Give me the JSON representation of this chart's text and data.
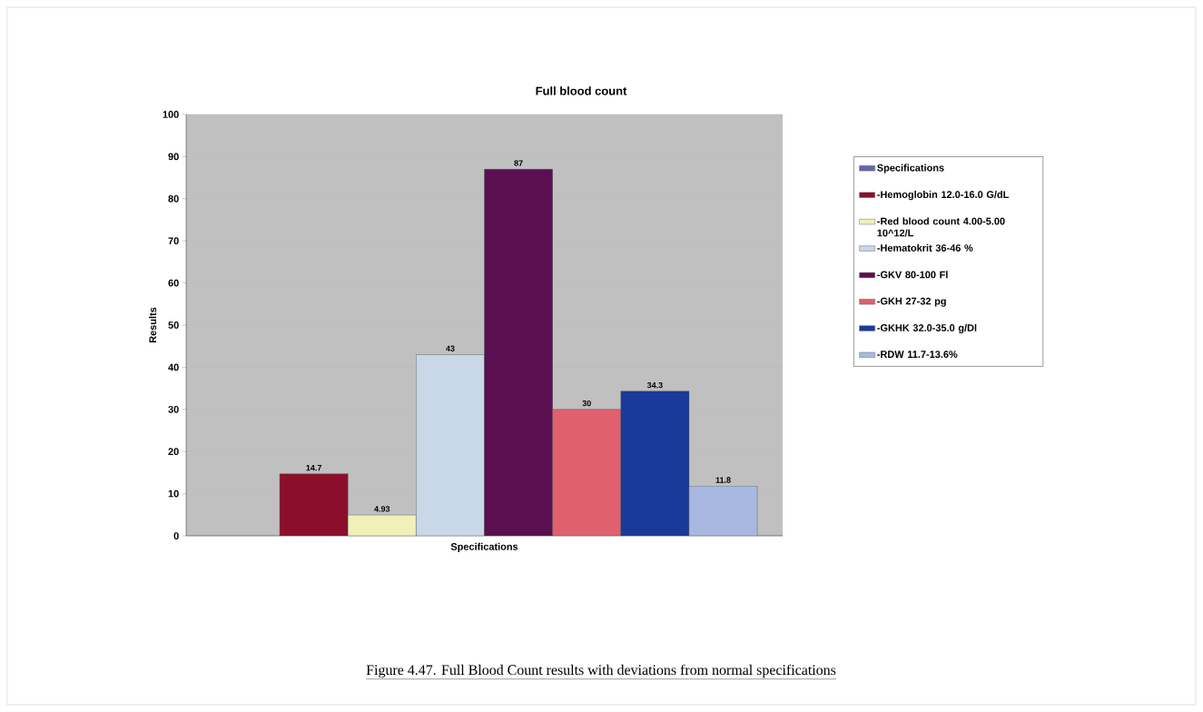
{
  "chart_data": {
    "type": "bar",
    "title": "Full blood count",
    "ylabel": "Results",
    "categories": [
      "Specifications"
    ],
    "series": [
      {
        "name": "Specifications",
        "color": "#6666aa",
        "values": [
          null
        ]
      },
      {
        "name": "-Hemoglobin 12.0-16.0 G/dL",
        "color": "#8b0f2a",
        "values": [
          14.7
        ],
        "value_labels": [
          "14.7"
        ]
      },
      {
        "name": "-Red blood count 4.00-5.00  10^12/L",
        "color": "#f0f0b8",
        "values": [
          4.93
        ],
        "value_labels": [
          "4.93"
        ]
      },
      {
        "name": "-Hematokrit 36-46 %",
        "color": "#c8d8e8",
        "values": [
          43
        ],
        "value_labels": [
          "43"
        ]
      },
      {
        "name": "-GKV 80-100 Fl",
        "color": "#5a1050",
        "values": [
          87
        ],
        "value_labels": [
          "87"
        ]
      },
      {
        "name": "-GKH 27-32 pg",
        "color": "#e06070",
        "values": [
          30
        ],
        "value_labels": [
          "30"
        ]
      },
      {
        "name": "-GKHK 32.0-35.0 g/Dl",
        "color": "#1a3a9a",
        "values": [
          34.3
        ],
        "value_labels": [
          "34.3"
        ]
      },
      {
        "name": "-RDW 11.7-13.6%",
        "color": "#a8b8e0",
        "values": [
          11.8
        ],
        "value_labels": [
          "11.8"
        ]
      }
    ],
    "ylim": [
      0,
      100
    ],
    "yticks": [
      0,
      10,
      20,
      30,
      40,
      50,
      60,
      70,
      80,
      90,
      100
    ],
    "grid": "y",
    "legend": "right",
    "annotations": [
      "Figure 4.47. Full Blood Count results with deviations from normal specifications"
    ]
  }
}
